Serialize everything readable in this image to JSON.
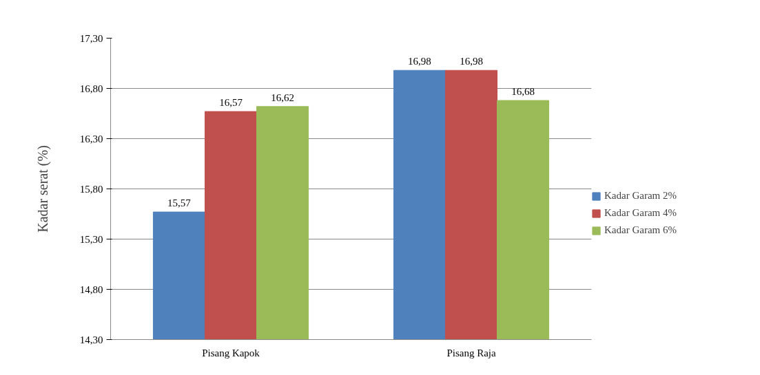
{
  "chart_data": {
    "type": "bar",
    "ylabel": "Kadar serat (%)",
    "categories": [
      "Pisang Kapok",
      "Pisang Raja"
    ],
    "series": [
      {
        "name": "Kadar Garam 2%",
        "color": "#4f81bd",
        "values": [
          15.57,
          16.98
        ],
        "value_labels": [
          "15,57",
          "16,98"
        ]
      },
      {
        "name": "Kadar Garam 4%",
        "color": "#c0504d",
        "values": [
          16.57,
          16.98
        ],
        "value_labels": [
          "16,57",
          "16,98"
        ]
      },
      {
        "name": "Kadar Garam 6%",
        "color": "#9bbb59",
        "values": [
          16.62,
          16.68
        ],
        "value_labels": [
          "16,62",
          "16,68"
        ]
      }
    ],
    "ylim": [
      14.3,
      17.3
    ],
    "yticks": [
      {
        "value": 14.3,
        "label": "14,30"
      },
      {
        "value": 14.8,
        "label": "14,80"
      },
      {
        "value": 15.3,
        "label": "15,30"
      },
      {
        "value": 15.8,
        "label": "15,80"
      },
      {
        "value": 16.3,
        "label": "16,30"
      },
      {
        "value": 16.8,
        "label": "16,80"
      },
      {
        "value": 17.3,
        "label": "17,30"
      }
    ],
    "grid": "y",
    "legend": "right"
  }
}
